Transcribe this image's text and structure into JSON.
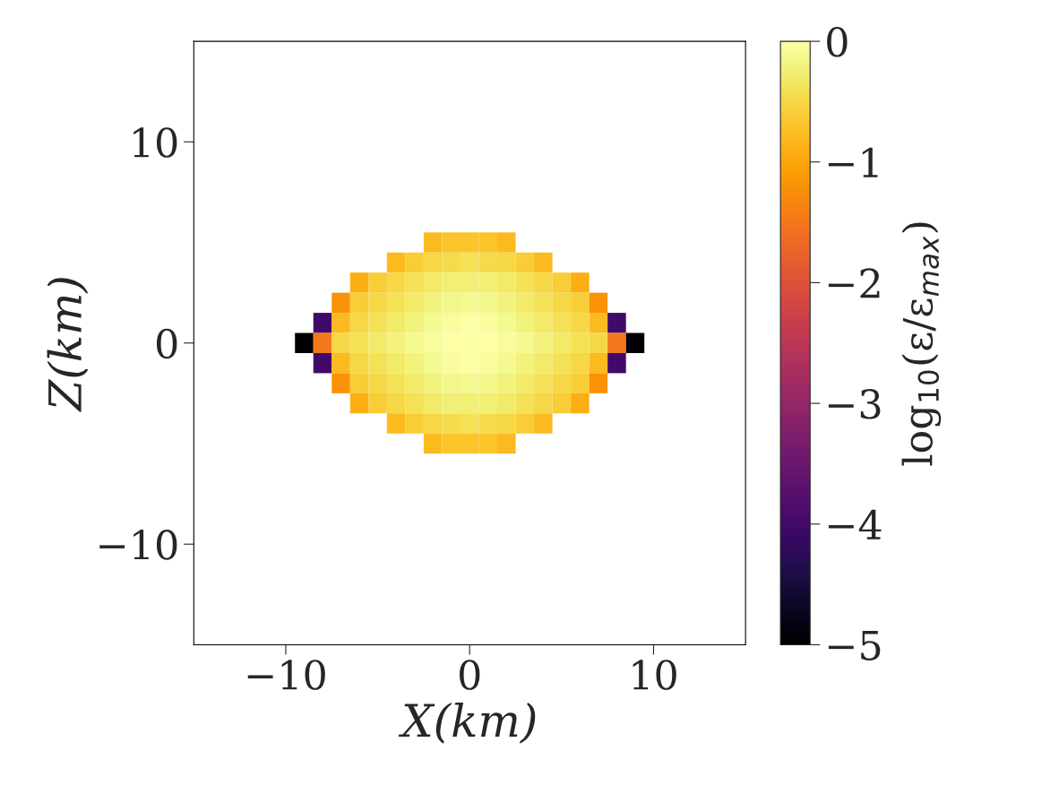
{
  "chart_data": {
    "type": "heatmap",
    "xlabel": "X(km)",
    "ylabel": "Z(km)",
    "clabel": "log$_{10}$(ε/ε$_{max}$)",
    "x": [
      -9,
      -8,
      -7,
      -6,
      -5,
      -4,
      -3,
      -2,
      -1,
      0,
      1,
      2,
      3,
      4,
      5,
      6,
      7,
      8,
      9
    ],
    "y": [
      5,
      4,
      3,
      2,
      1,
      0,
      -1,
      -2,
      -3,
      -4,
      -5
    ],
    "cells": [
      [
        null,
        null,
        null,
        null,
        null,
        null,
        null,
        -0.8,
        -0.7,
        -0.7,
        -0.7,
        -0.8,
        null,
        null,
        null,
        null,
        null,
        null,
        null
      ],
      [
        null,
        null,
        null,
        null,
        null,
        -0.8,
        -0.6,
        -0.5,
        -0.45,
        -0.4,
        -0.45,
        -0.5,
        -0.6,
        -0.8,
        null,
        null,
        null,
        null,
        null
      ],
      [
        null,
        null,
        null,
        -0.9,
        -0.6,
        -0.5,
        -0.4,
        -0.3,
        -0.25,
        -0.25,
        -0.25,
        -0.3,
        -0.4,
        -0.5,
        -0.6,
        -0.9,
        null,
        null,
        null
      ],
      [
        null,
        null,
        -1.2,
        -0.6,
        -0.5,
        -0.4,
        -0.3,
        -0.2,
        -0.15,
        -0.1,
        -0.15,
        -0.2,
        -0.3,
        -0.4,
        -0.5,
        -0.6,
        -1.2,
        null,
        null
      ],
      [
        null,
        -4,
        -0.8,
        -0.5,
        -0.4,
        -0.3,
        -0.2,
        -0.1,
        -0.05,
        0,
        -0.05,
        -0.1,
        -0.2,
        -0.3,
        -0.4,
        -0.5,
        -0.8,
        -4,
        null
      ],
      [
        -5,
        -1.5,
        -0.5,
        -0.4,
        -0.3,
        -0.2,
        -0.1,
        -0.05,
        0,
        0,
        0,
        -0.05,
        -0.1,
        -0.2,
        -0.3,
        -0.4,
        -0.5,
        -1.5,
        -5
      ],
      [
        null,
        -4,
        -0.8,
        -0.5,
        -0.4,
        -0.3,
        -0.2,
        -0.1,
        -0.05,
        0,
        -0.05,
        -0.1,
        -0.2,
        -0.3,
        -0.4,
        -0.5,
        -0.8,
        -4,
        null
      ],
      [
        null,
        null,
        -1.2,
        -0.6,
        -0.5,
        -0.4,
        -0.3,
        -0.2,
        -0.15,
        -0.1,
        -0.15,
        -0.2,
        -0.3,
        -0.4,
        -0.5,
        -0.6,
        -1.2,
        null,
        null
      ],
      [
        null,
        null,
        null,
        -0.9,
        -0.6,
        -0.5,
        -0.4,
        -0.3,
        -0.25,
        -0.25,
        -0.25,
        -0.3,
        -0.4,
        -0.5,
        -0.6,
        -0.9,
        null,
        null,
        null
      ],
      [
        null,
        null,
        null,
        null,
        null,
        -0.8,
        -0.6,
        -0.5,
        -0.45,
        -0.4,
        -0.45,
        -0.5,
        -0.6,
        -0.8,
        null,
        null,
        null,
        null,
        null
      ],
      [
        null,
        null,
        null,
        null,
        null,
        null,
        null,
        -0.8,
        -0.7,
        -0.7,
        -0.7,
        -0.8,
        null,
        null,
        null,
        null,
        null,
        null,
        null
      ]
    ],
    "xlim": [
      -15,
      15
    ],
    "ylim": [
      -15,
      15
    ],
    "xticks": [
      {
        "value": -10,
        "label": "−10"
      },
      0,
      10
    ],
    "yticks": [
      {
        "value": -10,
        "label": "−10"
      },
      0,
      10
    ],
    "clim": [
      -5,
      0
    ],
    "cticks": [
      {
        "value": -5,
        "label": "−5"
      },
      {
        "value": -4,
        "label": "−4"
      },
      {
        "value": -3,
        "label": "−3"
      },
      {
        "value": -2,
        "label": "−2"
      },
      {
        "value": -1,
        "label": "−1"
      },
      0
    ],
    "grid": false
  }
}
